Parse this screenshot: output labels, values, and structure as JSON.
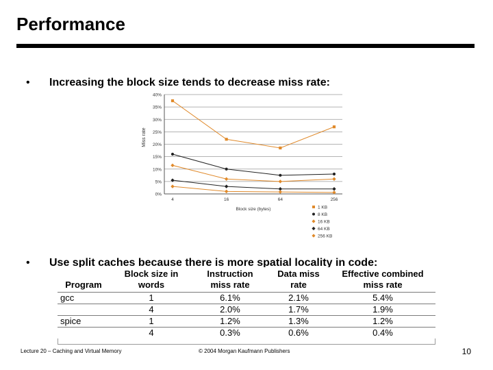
{
  "slide": {
    "title": "Performance",
    "bullets": [
      {
        "marker": "•",
        "text": "Increasing the block size tends to decrease miss rate:"
      },
      {
        "marker": "•",
        "text": "Use split caches because there is more spatial locality in code:"
      }
    ],
    "footer_left": "Lecture 20 – Caching and Virtual Memory",
    "footer_center": "© 2004 Morgan Kaufmann Publishers",
    "page_number": "10"
  },
  "chart_data": {
    "type": "line",
    "xlabel": "Block size (bytes)",
    "ylabel": "Miss rate",
    "categories": [
      "4",
      "16",
      "64",
      "256"
    ],
    "ylim": [
      0,
      40
    ],
    "yticks": [
      "0%",
      "5%",
      "10%",
      "15%",
      "20%",
      "25%",
      "30%",
      "35%",
      "40%"
    ],
    "series": [
      {
        "name": "1 KB",
        "values": [
          37.5,
          22,
          18.5,
          27
        ],
        "color": "#e08a2b",
        "marker": "square"
      },
      {
        "name": "8 KB",
        "values": [
          16,
          10,
          7.5,
          8
        ],
        "color": "#222222",
        "marker": "circle"
      },
      {
        "name": "16 KB",
        "values": [
          11.5,
          6,
          5,
          6
        ],
        "color": "#e08a2b",
        "marker": "diamond"
      },
      {
        "name": "64 KB",
        "values": [
          5.5,
          3,
          2,
          2
        ],
        "color": "#222222",
        "marker": "diamond"
      },
      {
        "name": "256 KB",
        "values": [
          3,
          1,
          0.8,
          0.6
        ],
        "color": "#e08a2b",
        "marker": "diamond"
      }
    ]
  },
  "table": {
    "headers": [
      "Program",
      "Block size in words",
      "Instruction miss rate",
      "Data miss rate",
      "Effective combined miss rate"
    ],
    "header_lines": [
      [
        "",
        "Block size in",
        "Instruction",
        "Data miss",
        "Effective combined"
      ],
      [
        "Program",
        "words",
        "miss rate",
        "rate",
        "miss rate"
      ]
    ],
    "rows": [
      [
        "gcc",
        "1",
        "6.1%",
        "2.1%",
        "5.4%"
      ],
      [
        "",
        "4",
        "2.0%",
        "1.7%",
        "1.9%"
      ],
      [
        "spice",
        "1",
        "1.2%",
        "1.3%",
        "1.2%"
      ],
      [
        "",
        "4",
        "0.3%",
        "0.6%",
        "0.4%"
      ]
    ]
  }
}
